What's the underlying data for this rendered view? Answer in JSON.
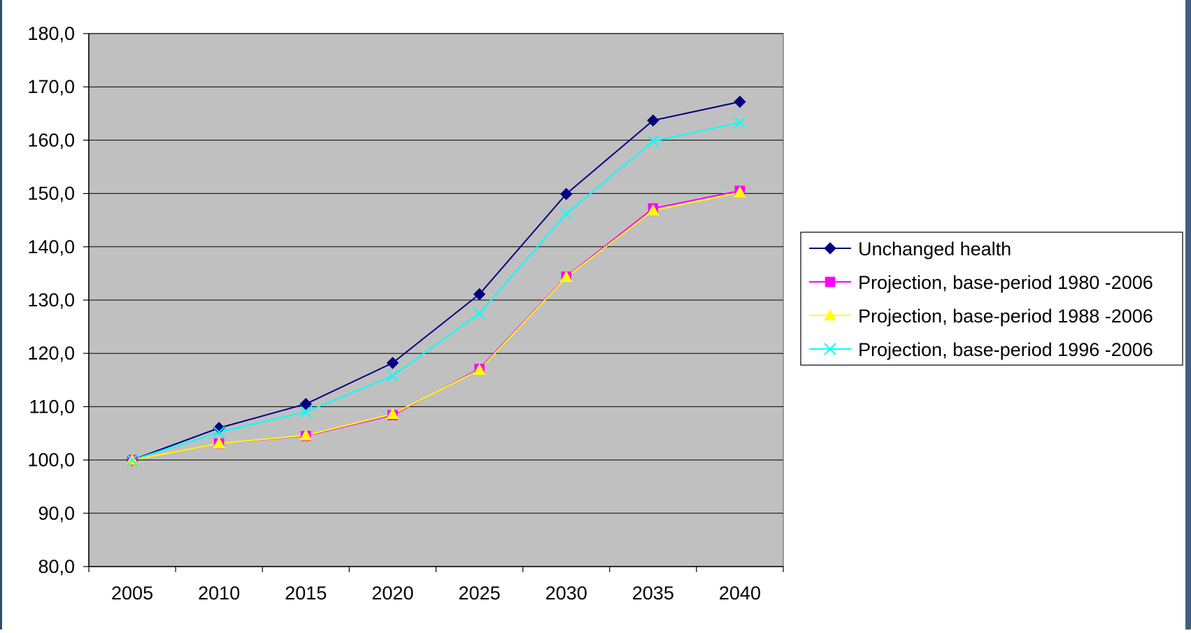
{
  "colors": {
    "plot_background": "#c0c0c0",
    "gridline": "#000000",
    "page_background": "#ffffff"
  },
  "chart_data": {
    "type": "line",
    "title": "",
    "xlabel": "",
    "ylabel": "",
    "categories": [
      "2005",
      "2010",
      "2015",
      "2020",
      "2025",
      "2030",
      "2035",
      "2040"
    ],
    "ylim": [
      80.0,
      180.0
    ],
    "ytick_labels": [
      "80,0",
      "90,0",
      "100,0",
      "110,0",
      "120,0",
      "130,0",
      "140,0",
      "150,0",
      "160,0",
      "170,0",
      "180,0"
    ],
    "grid": "horizontal",
    "legend_position": "right",
    "series": [
      {
        "name": "Unchanged health",
        "color": "#000080",
        "marker": "diamond",
        "values": [
          100.0,
          106.0,
          110.5,
          118.2,
          131.1,
          149.9,
          163.7,
          167.2
        ]
      },
      {
        "name": "Projection, base-period 1980 -2006",
        "color": "#ff00ff",
        "marker": "square",
        "values": [
          100.0,
          103.1,
          104.5,
          108.4,
          117.1,
          134.4,
          147.2,
          150.5
        ]
      },
      {
        "name": "Projection, base-period 1988 -2006",
        "color": "#ffff00",
        "marker": "triangle",
        "values": [
          100.0,
          103.1,
          104.6,
          108.6,
          116.9,
          134.3,
          146.8,
          150.2
        ]
      },
      {
        "name": "Projection, base-period 1996 -2006",
        "color": "#00ffff",
        "marker": "x",
        "values": [
          100.0,
          105.2,
          109.0,
          115.8,
          127.5,
          146.2,
          159.8,
          163.3
        ]
      }
    ]
  }
}
